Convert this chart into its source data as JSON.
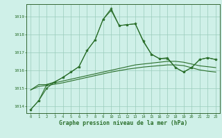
{
  "title": "Graphe pression niveau de la mer (hPa)",
  "background_color": "#cff0e8",
  "plot_bg_color": "#cff0e8",
  "grid_color": "#99ccbb",
  "line_color": "#2a6e2a",
  "xlim": [
    -0.5,
    23.5
  ],
  "ylim": [
    1013.6,
    1019.7
  ],
  "yticks": [
    1014,
    1015,
    1016,
    1017,
    1018,
    1019
  ],
  "xticks": [
    0,
    1,
    2,
    3,
    4,
    5,
    6,
    7,
    8,
    9,
    10,
    11,
    12,
    13,
    14,
    15,
    16,
    17,
    18,
    19,
    20,
    21,
    22,
    23
  ],
  "series1_x": [
    0,
    1,
    2,
    3,
    4,
    5,
    6,
    7,
    8,
    9,
    10,
    11,
    12,
    13,
    14,
    15,
    16,
    17,
    18,
    19,
    20,
    21,
    22,
    23
  ],
  "series1_y": [
    1013.8,
    1014.3,
    1015.0,
    1015.35,
    1015.6,
    1015.9,
    1016.2,
    1017.1,
    1017.7,
    1018.85,
    1019.45,
    1018.5,
    1018.55,
    1018.6,
    1017.6,
    1016.9,
    1016.65,
    1016.65,
    1016.15,
    1015.9,
    1016.15,
    1016.6,
    1016.7,
    1016.6
  ],
  "series2_x": [
    0,
    1,
    2,
    3,
    4,
    5,
    6,
    7,
    8,
    9,
    10,
    11,
    12,
    13,
    14,
    15,
    16,
    17,
    18,
    19,
    20,
    21,
    22,
    23
  ],
  "series2_y": [
    1013.8,
    1014.3,
    1015.2,
    1015.35,
    1015.6,
    1015.9,
    1016.2,
    1017.1,
    1017.7,
    1018.85,
    1019.35,
    1018.5,
    1018.55,
    1018.6,
    1017.65,
    1016.9,
    1016.65,
    1016.7,
    1016.15,
    1015.9,
    1016.15,
    1016.6,
    1016.7,
    1016.6
  ],
  "series3_x": [
    0,
    1,
    2,
    3,
    4,
    5,
    6,
    7,
    8,
    9,
    10,
    11,
    12,
    13,
    14,
    15,
    16,
    17,
    18,
    19,
    20,
    21,
    22,
    23
  ],
  "series3_y": [
    1014.9,
    1015.2,
    1015.2,
    1015.3,
    1015.4,
    1015.5,
    1015.6,
    1015.7,
    1015.8,
    1015.9,
    1016.0,
    1016.1,
    1016.2,
    1016.3,
    1016.35,
    1016.4,
    1016.45,
    1016.5,
    1016.5,
    1016.45,
    1016.35,
    1016.25,
    1016.2,
    1016.15
  ],
  "series4_x": [
    0,
    1,
    2,
    3,
    4,
    5,
    6,
    7,
    8,
    9,
    10,
    11,
    12,
    13,
    14,
    15,
    16,
    17,
    18,
    19,
    20,
    21,
    22,
    23
  ],
  "series4_y": [
    1014.9,
    1015.1,
    1015.15,
    1015.22,
    1015.3,
    1015.4,
    1015.5,
    1015.6,
    1015.7,
    1015.8,
    1015.9,
    1015.98,
    1016.06,
    1016.12,
    1016.18,
    1016.22,
    1016.26,
    1016.3,
    1016.3,
    1016.26,
    1016.14,
    1016.02,
    1015.95,
    1015.9
  ]
}
